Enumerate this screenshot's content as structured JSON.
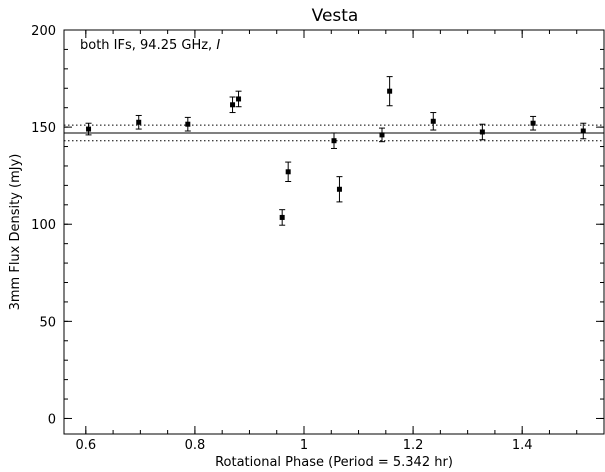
{
  "chart_data": {
    "type": "scatter",
    "title": "Vesta",
    "annotation": {
      "prefix": "both IFs, 94.25 GHz, ",
      "italic": "I"
    },
    "xlabel": "Rotational Phase (Period = 5.342 hr)",
    "ylabel": "3mm Flux Density (mJy)",
    "xlim": [
      0.56,
      1.55
    ],
    "ylim": [
      -8,
      200
    ],
    "xticks": [
      0.6,
      0.8,
      1,
      1.2,
      1.4
    ],
    "xtick_labels": [
      "0.6",
      "0.8",
      "1",
      "1.2",
      "1.4"
    ],
    "yticks": [
      0,
      50,
      100,
      150,
      200
    ],
    "ytick_labels": [
      "0",
      "50",
      "100",
      "150",
      "200"
    ],
    "mean_line": 147,
    "band_lines": [
      151,
      143
    ],
    "grid": false,
    "points": [
      {
        "x": 0.605,
        "y": 149,
        "err": 3
      },
      {
        "x": 0.697,
        "y": 152.5,
        "err": 3.5
      },
      {
        "x": 0.787,
        "y": 151.5,
        "err": 3.5
      },
      {
        "x": 0.869,
        "y": 161.5,
        "err": 4
      },
      {
        "x": 0.88,
        "y": 164.5,
        "err": 4
      },
      {
        "x": 0.96,
        "y": 103.5,
        "err": 4
      },
      {
        "x": 0.971,
        "y": 127,
        "err": 5
      },
      {
        "x": 1.055,
        "y": 143,
        "err": 4
      },
      {
        "x": 1.065,
        "y": 118,
        "err": 6.5
      },
      {
        "x": 1.143,
        "y": 146,
        "err": 3.5
      },
      {
        "x": 1.157,
        "y": 168.5,
        "err": 7.5
      },
      {
        "x": 1.237,
        "y": 153,
        "err": 4.5
      },
      {
        "x": 1.327,
        "y": 147.5,
        "err": 4
      },
      {
        "x": 1.42,
        "y": 152,
        "err": 3.5
      },
      {
        "x": 1.512,
        "y": 148,
        "err": 4
      }
    ]
  }
}
